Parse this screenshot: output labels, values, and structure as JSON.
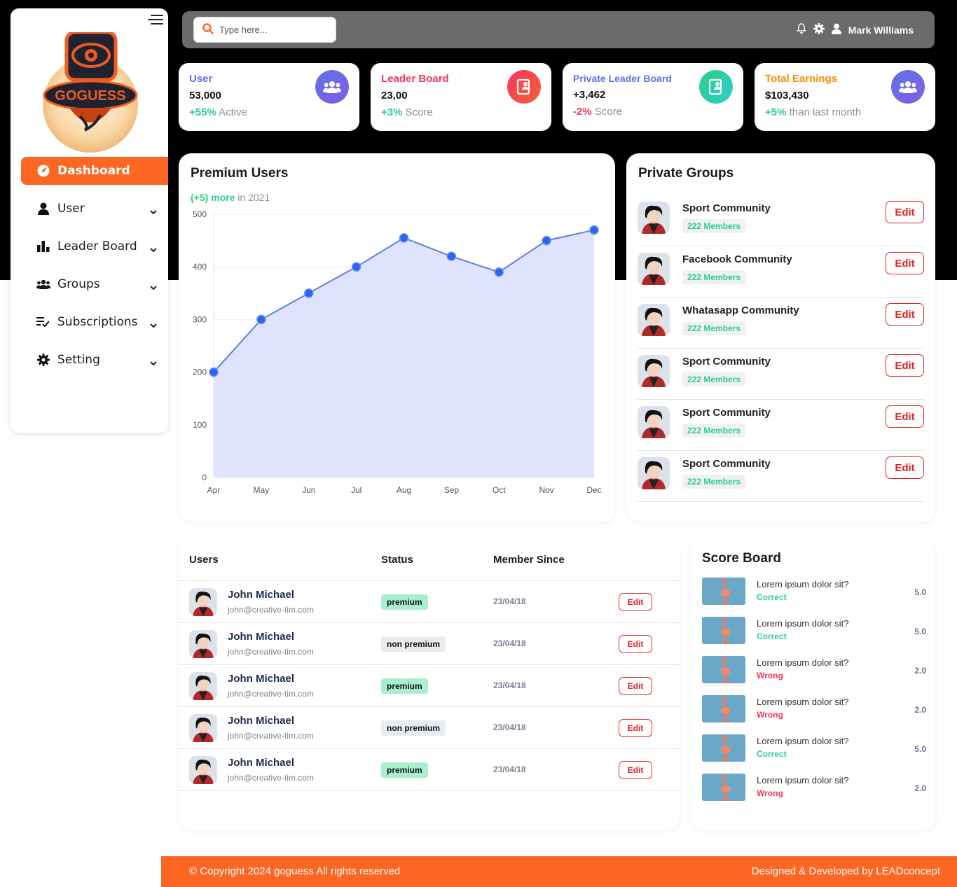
{
  "colors": {
    "accent": "#fe6624",
    "user_card": "#5e72e4",
    "leader_card": "#f5365c",
    "private_card": "#5e72e4",
    "earnings_card": "#fb8c00",
    "positive": "#2dce89",
    "negative": "#f5365c"
  },
  "sidebar": {
    "items": [
      {
        "label": "Dashboard",
        "icon": "gauge-icon"
      },
      {
        "label": "User",
        "icon": "user-icon"
      },
      {
        "label": "Leader Board",
        "icon": "bar-chart-icon"
      },
      {
        "label": "Groups",
        "icon": "group-icon"
      },
      {
        "label": "Subscriptions",
        "icon": "checklist-icon"
      },
      {
        "label": "Setting",
        "icon": "gear-icon"
      }
    ]
  },
  "header": {
    "search_placeholder": "Type here...",
    "user_name": "Mark Williams"
  },
  "stats": [
    {
      "title": "User",
      "value": "53,000",
      "delta": "+55%",
      "suffix": " Active",
      "icon": "users-icon"
    },
    {
      "title": "Leader Board",
      "value": "23,00",
      "delta": "+3%",
      "suffix": " Score",
      "icon": "leaderboard-icon"
    },
    {
      "title": "Private Leader Board",
      "value": "+3,462",
      "delta": "-2%",
      "suffix": " Score",
      "icon": "private-board-icon"
    },
    {
      "title": "Total Earnings",
      "value": "$103,430",
      "delta": "+5%",
      "suffix": " than last month",
      "icon": "users-icon"
    }
  ],
  "premium": {
    "title": "Premium Users",
    "sub_delta": "(+5) more",
    "sub_rest": " in 2021"
  },
  "chart_data": {
    "type": "area",
    "title": "Premium Users",
    "categories": [
      "Apr",
      "May",
      "Jun",
      "Jul",
      "Aug",
      "Sep",
      "Oct",
      "Nov",
      "Dec"
    ],
    "values": [
      200,
      300,
      350,
      400,
      455,
      420,
      390,
      450,
      470
    ],
    "ylim": [
      0,
      500
    ],
    "yticks": [
      0,
      100,
      200,
      300,
      400,
      500
    ],
    "grid": true,
    "color": "#2a66e8",
    "fill": "#dfe3fd"
  },
  "groups": {
    "title": "Private Groups",
    "edit_label": "Edit",
    "items": [
      {
        "name": "Sport Community",
        "members": "222 Members"
      },
      {
        "name": "Facebook Community",
        "members": "222 Members"
      },
      {
        "name": "Whatasapp Community",
        "members": "222 Members"
      },
      {
        "name": "Sport Community",
        "members": "222 Members"
      },
      {
        "name": "Sport Community",
        "members": "222 Members"
      },
      {
        "name": "Sport Community",
        "members": "222 Members"
      }
    ]
  },
  "users_table": {
    "headers": {
      "users": "Users",
      "status": "Status",
      "since": "Member Since"
    },
    "edit_label": "Edit",
    "rows": [
      {
        "name": "John Michael",
        "email": "john@creative-tim.com",
        "status": "premium",
        "since": "23/04/18"
      },
      {
        "name": "John Michael",
        "email": "john@creative-tim.com",
        "status": "non premium",
        "since": "23/04/18"
      },
      {
        "name": "John Michael",
        "email": "john@creative-tim.com",
        "status": "premium",
        "since": "23/04/18"
      },
      {
        "name": "John Michael",
        "email": "john@creative-tim.com",
        "status": "non premium",
        "since": "23/04/18"
      },
      {
        "name": "John Michael",
        "email": "john@creative-tim.com",
        "status": "premium",
        "since": "23/04/18"
      }
    ]
  },
  "scoreboard": {
    "title": "Score Board",
    "items": [
      {
        "question": "Lorem ipsum dolor sit?",
        "result": "Correct",
        "score": "5.0"
      },
      {
        "question": "Lorem ipsum dolor sit?",
        "result": "Correct",
        "score": "5.0"
      },
      {
        "question": "Lorem ipsum dolor sit?",
        "result": "Wrong",
        "score": "2.0"
      },
      {
        "question": "Lorem ipsum dolor sit?",
        "result": "Wrong",
        "score": "2.0"
      },
      {
        "question": "Lorem ipsum dolor sit?",
        "result": "Correct",
        "score": "5.0"
      },
      {
        "question": "Lorem ipsum dolor sit?",
        "result": "Wrong",
        "score": "2.0"
      }
    ]
  },
  "footer": {
    "copyright": "© Copyright 2024 goguess All rights reserved",
    "credit": "Designed & Developed by LEADconcept"
  }
}
